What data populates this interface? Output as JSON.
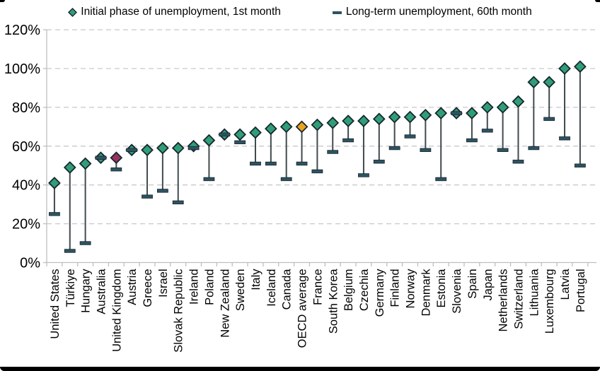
{
  "legend": {
    "initial_label": "Initial phase of unemployment, 1st month",
    "longterm_label": "Long-term unemployment, 60th month"
  },
  "chart_data": {
    "type": "scatter",
    "subtype": "dumbbell-drop-line",
    "title": "",
    "xlabel": "",
    "ylabel": "",
    "ylim": [
      0,
      120
    ],
    "ytick_step": 20,
    "ytick_labels": [
      "0%",
      "20%",
      "40%",
      "60%",
      "80%",
      "100%",
      "120%"
    ],
    "grid": "horizontal-dashed",
    "legend_position": "top-center",
    "categories": [
      "United States",
      "Türkiye",
      "Hungary",
      "Australia",
      "United Kingdom",
      "Austria",
      "Greece",
      "Israel",
      "Slovak Republic",
      "Ireland",
      "Poland",
      "New Zealand",
      "Sweden",
      "Italy",
      "Iceland",
      "Canada",
      "OECD average",
      "France",
      "South Korea",
      "Belgium",
      "Czechia",
      "Germany",
      "Finland",
      "Norway",
      "Denmark",
      "Estonia",
      "Slovenia",
      "Spain",
      "Japan",
      "Netherlands",
      "Switzerland",
      "Lithuania",
      "Luxembourg",
      "Latvia",
      "Portugal"
    ],
    "series": [
      {
        "name": "Initial phase of unemployment, 1st month",
        "marker": "diamond",
        "values": [
          41,
          49,
          51,
          54,
          54,
          58,
          58,
          59,
          59,
          60,
          63,
          66,
          66,
          67,
          69,
          70,
          70,
          71,
          72,
          73,
          73,
          74,
          75,
          75,
          76,
          77,
          77,
          77,
          80,
          80,
          83,
          93,
          93,
          100,
          101
        ]
      },
      {
        "name": "Long-term unemployment, 60th month",
        "marker": "dash",
        "values": [
          25,
          6,
          10,
          54,
          48,
          58,
          34,
          37,
          31,
          59,
          43,
          66,
          62,
          51,
          51,
          43,
          51,
          47,
          57,
          63,
          45,
          52,
          59,
          65,
          58,
          43,
          77,
          63,
          68,
          58,
          52,
          59,
          74,
          64,
          50
        ]
      }
    ],
    "colors": {
      "initial_marker": "#2F9E77",
      "marker_outline": "#17262E",
      "longterm_marker": "#2E5361",
      "stem": "#414B4D",
      "gridline": "#C9C9C9",
      "axis": "#BFBFBF",
      "text": "#000000",
      "highlights": {
        "United Kingdom": "#98325F",
        "OECD average": "#E9A51F"
      }
    }
  }
}
